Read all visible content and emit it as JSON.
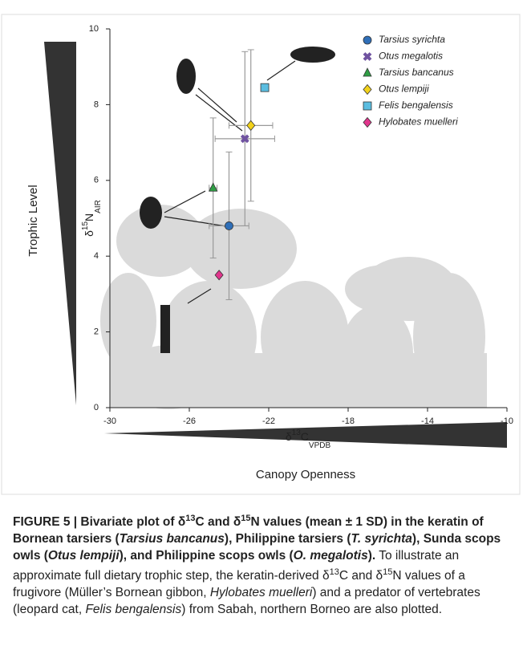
{
  "chart_data": {
    "type": "scatter",
    "ylabel_parts": [
      "δ",
      "15",
      "N",
      "AIR"
    ],
    "xlabel_parts": [
      "δ",
      "13",
      "C",
      "VPDB"
    ],
    "left_scale_label": "Trophic Level",
    "bottom_scale_label": "Canopy Openness",
    "xlim": [
      -30,
      -10
    ],
    "xticks": [
      -30,
      -26,
      -22,
      -18,
      -14,
      -10
    ],
    "ylim": [
      0,
      10
    ],
    "yticks": [
      0,
      2,
      4,
      6,
      8,
      10
    ],
    "legend": "top-right",
    "series": [
      {
        "name": "Tarsius syrichta",
        "color": "#2f6fb8",
        "marker": "circle",
        "x": [
          -24.0
        ],
        "values": [
          4.8
        ],
        "xerr": [
          1.0
        ],
        "yerr": [
          1.95
        ]
      },
      {
        "name": "Otus megalotis",
        "color": "#6f52a0",
        "marker": "x",
        "x": [
          -23.2
        ],
        "values": [
          7.1
        ],
        "xerr": [
          1.5
        ],
        "yerr": [
          2.3
        ]
      },
      {
        "name": "Tarsius bancanus",
        "color": "#2f9e44",
        "marker": "triangle",
        "x": [
          -24.8
        ],
        "values": [
          5.8
        ],
        "xerr": [
          0.2
        ],
        "yerr": [
          1.85
        ]
      },
      {
        "name": "Otus lempiji",
        "color": "#f2d21b",
        "marker": "diamond",
        "x": [
          -22.9
        ],
        "values": [
          7.45
        ],
        "xerr": [
          1.1
        ],
        "yerr": [
          2.0
        ]
      },
      {
        "name": "Felis bengalensis",
        "color": "#5bbde0",
        "marker": "square",
        "x": [
          -22.2
        ],
        "values": [
          8.45
        ]
      },
      {
        "name": "Hylobates muelleri",
        "color": "#e0358c",
        "marker": "diamond",
        "x": [
          -24.5
        ],
        "values": [
          3.5
        ]
      }
    ]
  },
  "caption": [
    {
      "t": "FIGURE 5 | Bivariate plot of δ",
      "s": "b"
    },
    {
      "t": "13",
      "s": "bs"
    },
    {
      "t": "C and δ",
      "s": "b"
    },
    {
      "t": "15",
      "s": "bs"
    },
    {
      "t": "N values (mean ± 1 SD) in the keratin of Bornean tarsiers (",
      "s": "b"
    },
    {
      "t": "Tarsius bancanus",
      "s": "bi"
    },
    {
      "t": "), Philippine tarsiers (",
      "s": "b"
    },
    {
      "t": "T. syrichta",
      "s": "bi"
    },
    {
      "t": "), Sunda scops owls (",
      "s": "b"
    },
    {
      "t": "Otus lempiji",
      "s": "bi"
    },
    {
      "t": "), and Philippine scops owls (",
      "s": "b"
    },
    {
      "t": "O. megalotis",
      "s": "bi"
    },
    {
      "t": ").",
      "s": "b"
    },
    {
      "t": " To illustrate an approximate full dietary trophic step, the keratin-derived δ",
      "s": "r"
    },
    {
      "t": "13",
      "s": "s"
    },
    {
      "t": "C and δ",
      "s": "r"
    },
    {
      "t": "15",
      "s": "s"
    },
    {
      "t": "N values of a frugivore (Müller’s Bornean gibbon, ",
      "s": "r"
    },
    {
      "t": "Hylobates muelleri",
      "s": "i"
    },
    {
      "t": ") and a predator of vertebrates (leopard cat, ",
      "s": "r"
    },
    {
      "t": "Felis bengalensis",
      "s": "i"
    },
    {
      "t": ") from Sabah, northern Borneo are also plotted.",
      "s": "r"
    }
  ]
}
